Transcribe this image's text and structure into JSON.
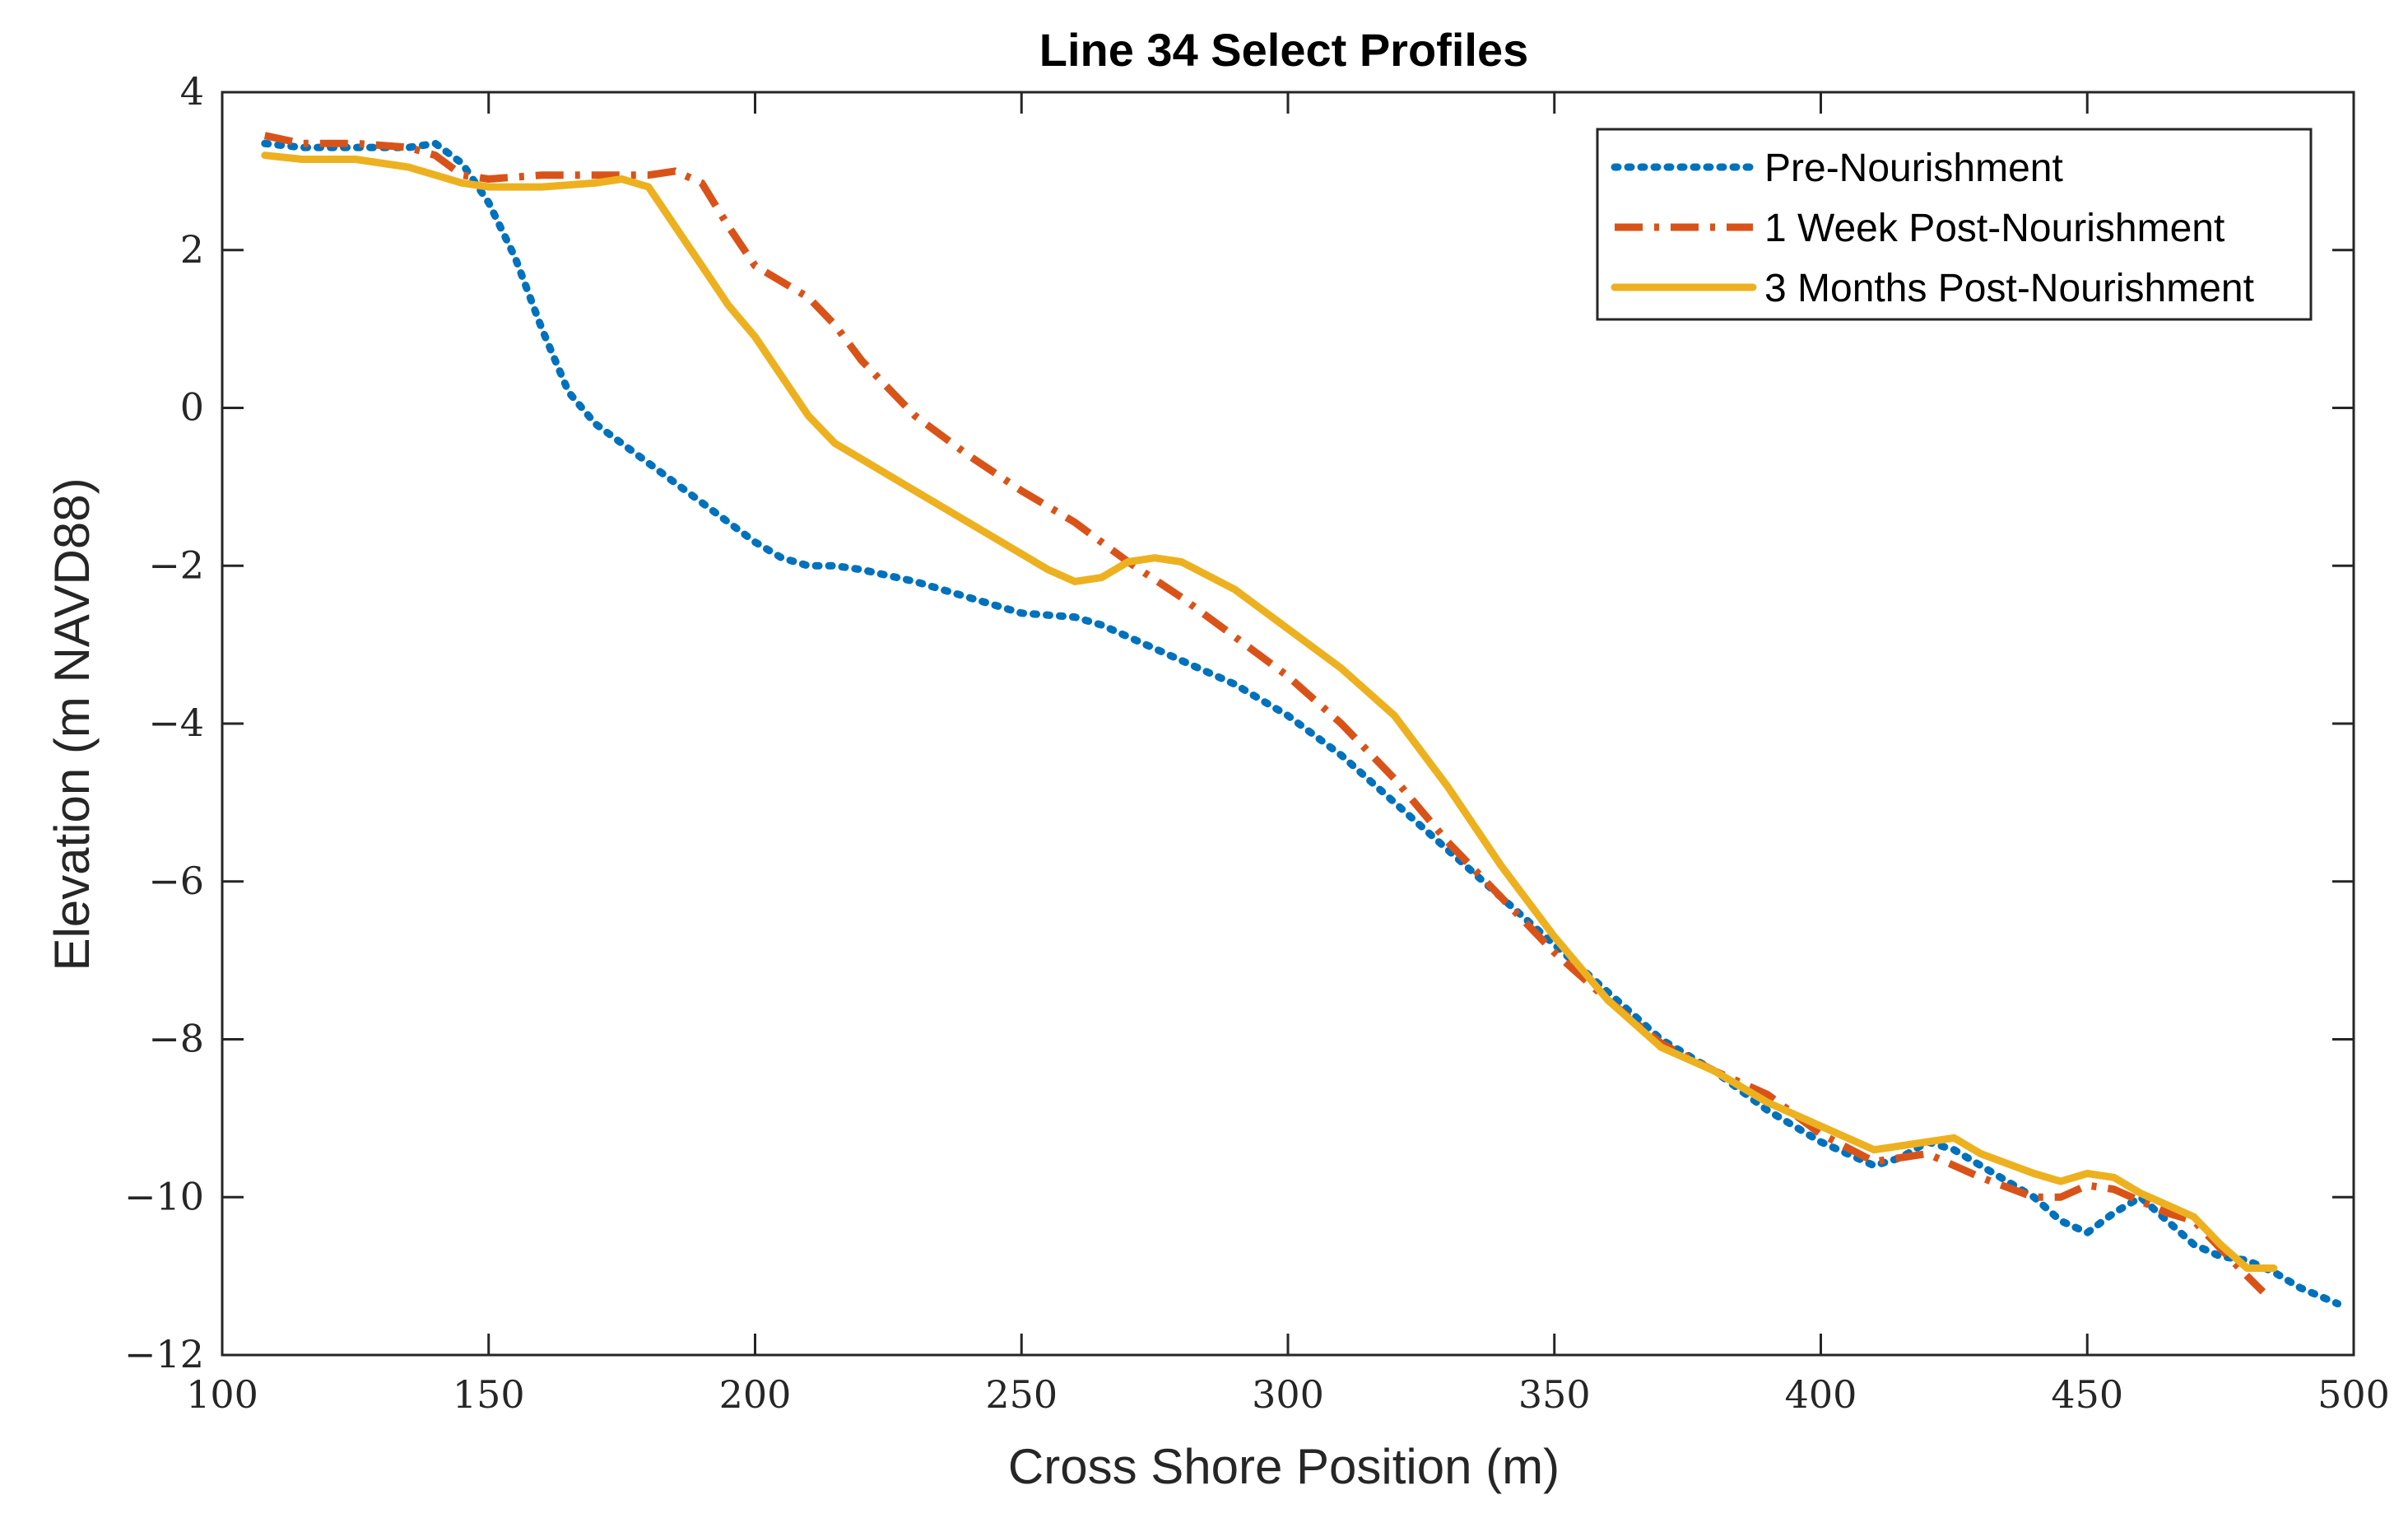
{
  "chart_data": {
    "type": "line",
    "title": "Line 34 Select Profiles",
    "xlabel": "Cross Shore Position (m)",
    "ylabel": "Elevation (m NAVD88)",
    "xlim": [
      100,
      500
    ],
    "ylim": [
      -12,
      4
    ],
    "xticks": [
      100,
      150,
      200,
      250,
      300,
      350,
      400,
      450,
      500
    ],
    "yticks": [
      4,
      2,
      0,
      -2,
      -4,
      -6,
      -8,
      -10,
      -12
    ],
    "xtick_labels": [
      "100",
      "150",
      "200",
      "250",
      "300",
      "350",
      "400",
      "450",
      "500"
    ],
    "ytick_labels": [
      "4",
      "2",
      "0",
      "−2",
      "−4",
      "−6",
      "−8",
      "−10",
      "−12"
    ],
    "legend_position": "top-right",
    "series": [
      {
        "name": "Pre-Nourishment",
        "color": "#0072BD",
        "style": "dotted",
        "x": [
          108,
          115,
          125,
          135,
          140,
          145,
          150,
          155,
          160,
          165,
          170,
          180,
          190,
          200,
          205,
          210,
          215,
          220,
          230,
          240,
          250,
          260,
          265,
          270,
          280,
          290,
          300,
          310,
          320,
          330,
          340,
          350,
          360,
          370,
          380,
          390,
          400,
          410,
          415,
          420,
          425,
          430,
          440,
          445,
          450,
          455,
          460,
          465,
          470,
          475,
          480,
          485,
          490,
          497
        ],
        "y": [
          3.35,
          3.3,
          3.3,
          3.3,
          3.35,
          3.1,
          2.6,
          1.9,
          1.0,
          0.2,
          -0.2,
          -0.7,
          -1.2,
          -1.7,
          -1.9,
          -2.0,
          -2.0,
          -2.05,
          -2.2,
          -2.4,
          -2.6,
          -2.65,
          -2.75,
          -2.9,
          -3.2,
          -3.5,
          -3.9,
          -4.4,
          -5.0,
          -5.6,
          -6.2,
          -6.8,
          -7.4,
          -8.0,
          -8.4,
          -8.9,
          -9.3,
          -9.6,
          -9.5,
          -9.3,
          -9.4,
          -9.6,
          -10.0,
          -10.3,
          -10.45,
          -10.2,
          -10.0,
          -10.3,
          -10.6,
          -10.75,
          -10.8,
          -10.95,
          -11.15,
          -11.35
        ]
      },
      {
        "name": "1 Week Post-Nourishment",
        "color": "#D95319",
        "style": "dashdot",
        "x": [
          108,
          115,
          125,
          135,
          140,
          145,
          150,
          160,
          170,
          180,
          185,
          190,
          195,
          200,
          205,
          210,
          215,
          220,
          230,
          240,
          250,
          260,
          270,
          280,
          290,
          300,
          310,
          320,
          330,
          340,
          350,
          360,
          370,
          380,
          390,
          400,
          410,
          415,
          420,
          430,
          440,
          445,
          450,
          455,
          460,
          465,
          470,
          475,
          480,
          483
        ],
        "y": [
          3.45,
          3.35,
          3.35,
          3.3,
          3.2,
          2.95,
          2.9,
          2.95,
          2.95,
          2.95,
          3.0,
          2.85,
          2.3,
          1.8,
          1.6,
          1.4,
          1.05,
          0.6,
          -0.1,
          -0.6,
          -1.05,
          -1.45,
          -1.95,
          -2.4,
          -2.9,
          -3.4,
          -4.0,
          -4.7,
          -5.5,
          -6.2,
          -6.9,
          -7.5,
          -8.05,
          -8.4,
          -8.7,
          -9.2,
          -9.55,
          -9.5,
          -9.45,
          -9.75,
          -10.0,
          -10.0,
          -9.85,
          -9.9,
          -10.05,
          -10.2,
          -10.3,
          -10.65,
          -11.0,
          -11.2
        ]
      },
      {
        "name": "3 Months Post-Nourishment",
        "color": "#EDB120",
        "style": "solid",
        "x": [
          108,
          115,
          125,
          135,
          145,
          150,
          160,
          170,
          175,
          180,
          183,
          187,
          190,
          195,
          200,
          205,
          210,
          215,
          220,
          230,
          240,
          250,
          255,
          260,
          265,
          270,
          275,
          280,
          290,
          300,
          310,
          320,
          330,
          340,
          350,
          360,
          370,
          380,
          390,
          400,
          410,
          415,
          420,
          425,
          430,
          440,
          445,
          450,
          455,
          460,
          465,
          470,
          475,
          480,
          485
        ],
        "y": [
          3.2,
          3.15,
          3.15,
          3.05,
          2.85,
          2.8,
          2.8,
          2.85,
          2.9,
          2.8,
          2.5,
          2.1,
          1.8,
          1.3,
          0.9,
          0.4,
          -0.1,
          -0.45,
          -0.65,
          -1.05,
          -1.45,
          -1.85,
          -2.05,
          -2.2,
          -2.15,
          -1.95,
          -1.9,
          -1.95,
          -2.3,
          -2.8,
          -3.3,
          -3.9,
          -4.8,
          -5.8,
          -6.7,
          -7.5,
          -8.1,
          -8.4,
          -8.8,
          -9.1,
          -9.4,
          -9.35,
          -9.3,
          -9.25,
          -9.45,
          -9.7,
          -9.8,
          -9.7,
          -9.75,
          -9.95,
          -10.1,
          -10.25,
          -10.6,
          -10.9,
          -10.9
        ]
      }
    ]
  }
}
